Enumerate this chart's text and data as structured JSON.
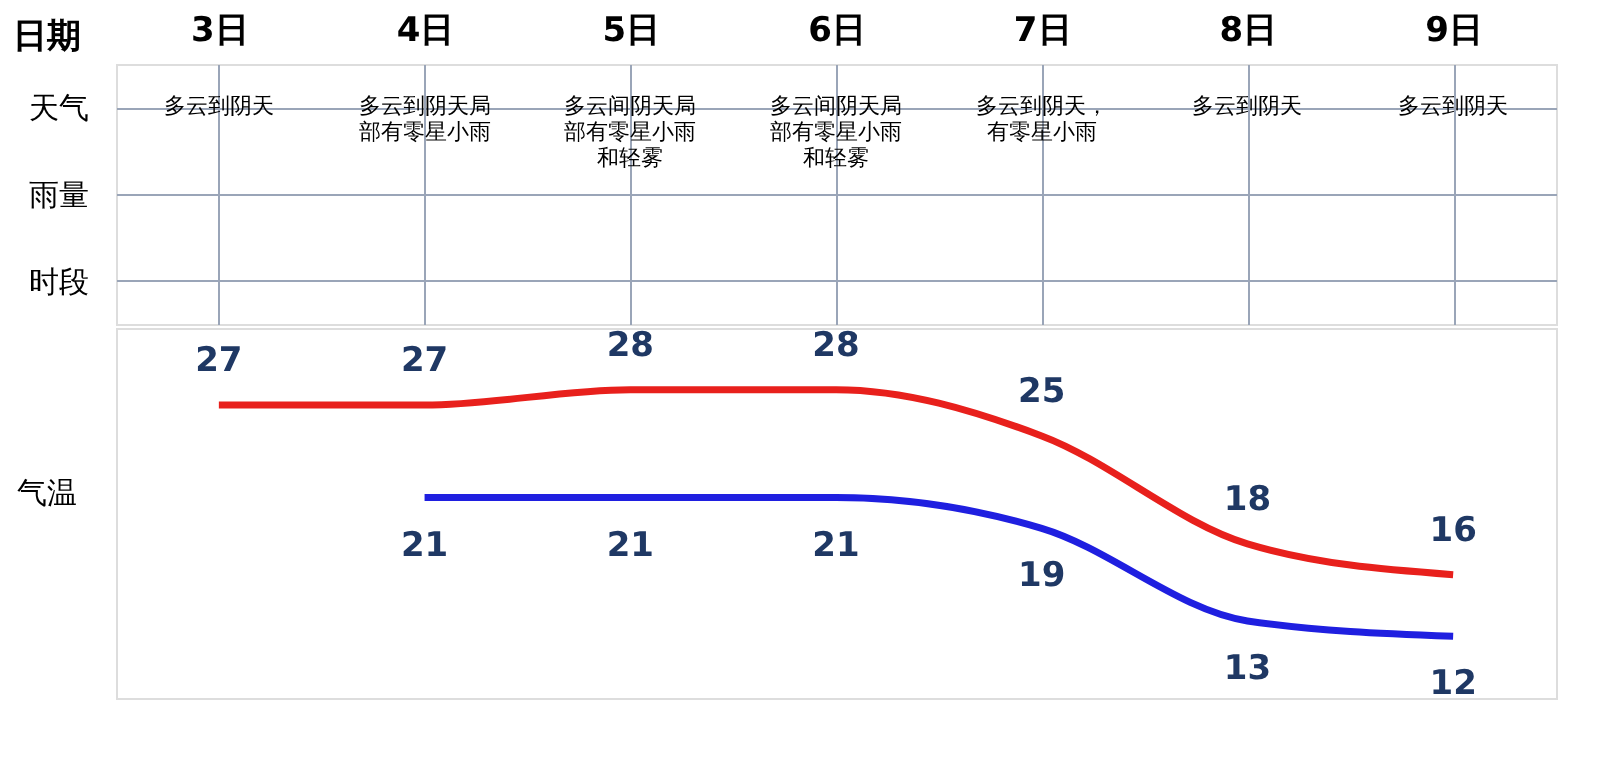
{
  "chart_data": {
    "type": "line",
    "xlabel": "日期",
    "ylabel": "气温",
    "categories": [
      "3日",
      "4日",
      "5日",
      "6日",
      "7日",
      "8日",
      "9日"
    ],
    "annotations": [
      "天气",
      "雨量",
      "时段",
      "多云到阴天",
      "多云到阴天局部有零星小雨",
      "多云间阴天局部有零星小雨和轻雾",
      "多云间阴天局部有零星小雨和轻雾",
      "多云到阴天，有零星小雨",
      "多云到阴天",
      "多云到阴天"
    ],
    "series": [
      {
        "color": "#e8201c",
        "values": [
          27,
          27,
          28,
          28,
          25,
          18,
          16
        ]
      },
      {
        "color": "#1f1fe0",
        "values": [
          null,
          21,
          21,
          21,
          19,
          13,
          12
        ]
      }
    ],
    "ylim": [
      8,
      32
    ],
    "tick_labels": "x",
    "data_labels": true,
    "grid": false,
    "legend": false
  }
}
